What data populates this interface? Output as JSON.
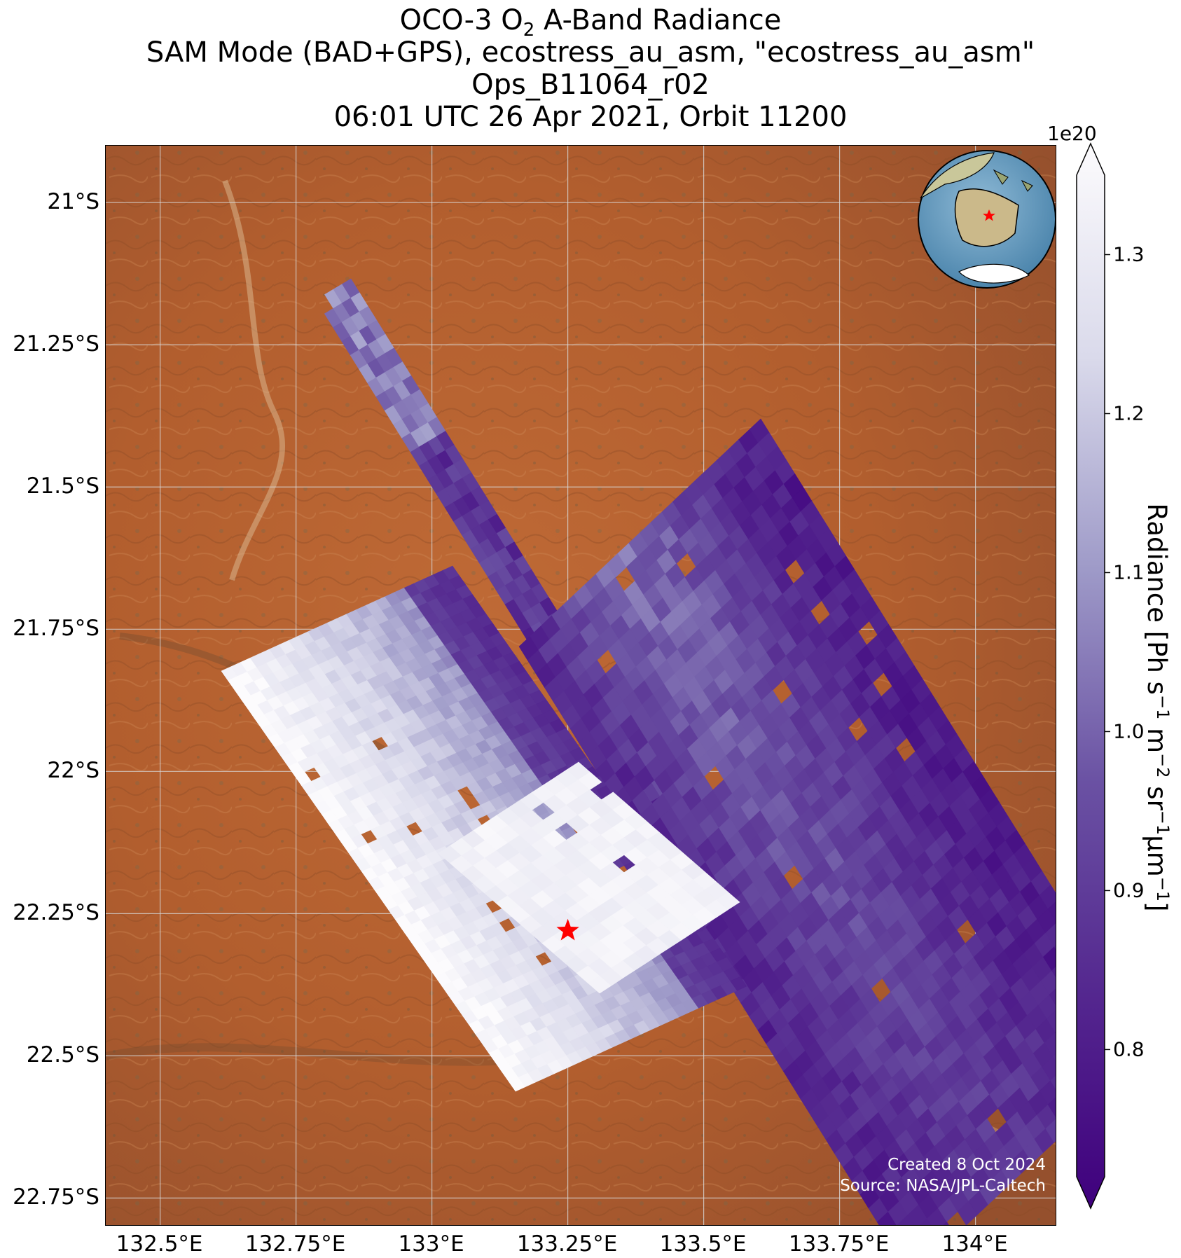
{
  "title": {
    "line1_pre": "OCO-3 O",
    "line1_sub": "2",
    "line1_post": " A-Band Radiance",
    "line2": "SAM Mode (BAD+GPS), ecostress_au_asm, \"ecostress_au_asm\"",
    "line3": "Ops_B11064_r02",
    "line4": "06:01 UTC 26 Apr 2021, Orbit 11200"
  },
  "axes": {
    "lon_ticks": [
      "132.5°E",
      "132.75°E",
      "133°E",
      "133.25°E",
      "133.5°E",
      "133.75°E",
      "134°E"
    ],
    "lat_ticks": [
      "21°S",
      "21.25°S",
      "21.5°S",
      "21.75°S",
      "22°S",
      "22.25°S",
      "22.5°S",
      "22.75°S"
    ],
    "lon_range": [
      132.4,
      134.15
    ],
    "lat_range": [
      -22.8,
      -20.9
    ],
    "grid": true
  },
  "colorbar": {
    "label_parts": [
      "Radiance [Ph s",
      "−1",
      " m",
      "−2",
      " sr",
      "−1",
      "μm",
      "−1",
      "]"
    ],
    "multiplier": "1e20",
    "ticks": [
      "1.3",
      "1.2",
      "1.1",
      "1.0",
      "0.9",
      "0.8"
    ],
    "tick_values": [
      1.3,
      1.2,
      1.1,
      1.0,
      0.9,
      0.8
    ],
    "range": [
      0.72,
      1.35
    ],
    "colormap": "Purples_r",
    "extend": "both"
  },
  "credits": {
    "created": "Created 8 Oct 2024",
    "source": "Source: NASA/JPL-Caltech"
  },
  "target_site": {
    "lon": 133.25,
    "lat": -22.28,
    "color": "#ff0000"
  },
  "colors": {
    "terrain": "#b5612e",
    "swath_dark": "#3f007d",
    "swath_light": "#fcfbfd"
  }
}
